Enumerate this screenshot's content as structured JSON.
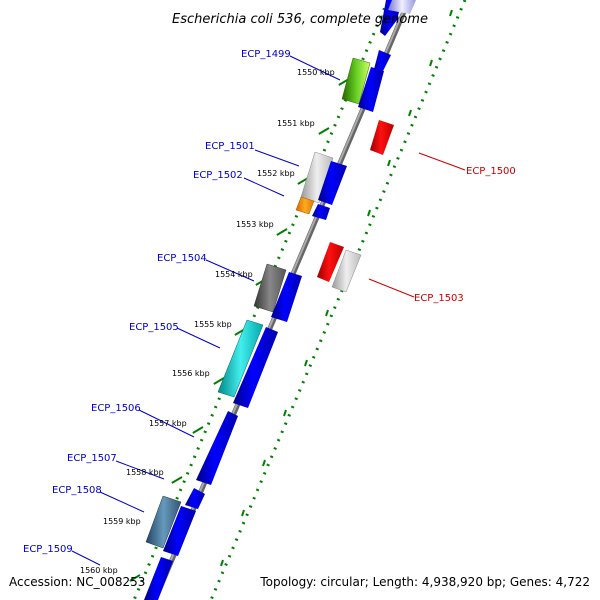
{
  "title": "Escherichia coli 536, complete genome",
  "footer": {
    "accession": "Accession: NC_008253",
    "topology": "Topology: circular; Length: 4,938,920 bp; Genes: 4,722"
  },
  "kbp_ticks": [
    "1550 kbp",
    "1551 kbp",
    "1552 kbp",
    "1553 kbp",
    "1554 kbp",
    "1555 kbp",
    "1556 kbp",
    "1557 kbp",
    "1558 kbp",
    "1559 kbp",
    "1560 kbp"
  ],
  "gene_labels": {
    "ecp_1499": "ECP_1499",
    "ecp_1500": "ECP_1500",
    "ecp_1501": "ECP_1501",
    "ecp_1502": "ECP_1502",
    "ecp_1503": "ECP_1503",
    "ecp_1504": "ECP_1504",
    "ecp_1505": "ECP_1505",
    "ecp_1506": "ECP_1506",
    "ecp_1507": "ECP_1507",
    "ecp_1508": "ECP_1508",
    "ecp_1509": "ECP_1509"
  },
  "colors": {
    "backbone": "#888888",
    "gc_track": "#008000",
    "forward_label": "#0000cc",
    "reverse_label": "#cc0000",
    "cds_blue": "#0000ee",
    "cds_red": "#ee0000"
  }
}
